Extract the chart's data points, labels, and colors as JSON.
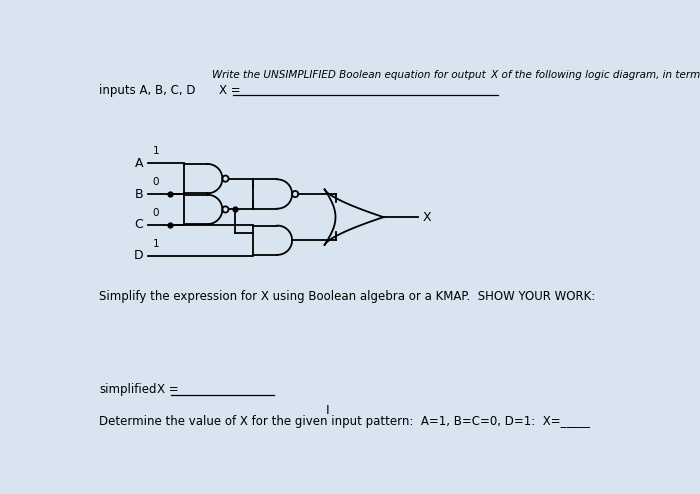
{
  "bg_color": "#d8e4f0",
  "text_color": "#000000",
  "gate_color": "#000000",
  "line_color": "#000000",
  "title_line1": "Write the UNSIMPLIFIED Boolean equation for output  X of the following logic diagram, in terms of",
  "title_line2_left": "inputs A, B, C, D",
  "title_line2_right": "X =",
  "label_A": "A",
  "label_B": "B",
  "label_C": "C",
  "label_D": "D",
  "val_A": "1",
  "val_B": "0",
  "val_C": "0",
  "val_D": "1",
  "label_X": "X",
  "simplify_text": "Simplify the expression for X using Boolean algebra or a KMAP.  SHOW YOUR WORK:",
  "simplified_label": "simplified",
  "simplified_eq": "X = ",
  "determine_text": "Determine the value of X for the given input pattern:  A=1, B=C=0, D=1:  X=",
  "determine_blank": "_____",
  "cursor_symbol": "I"
}
